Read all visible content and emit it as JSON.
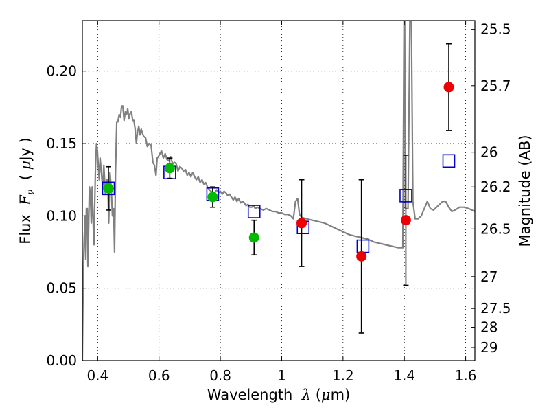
{
  "chart_data": {
    "type": "scatter",
    "title": "",
    "xlabel": "Wavelength  λ (μm)",
    "ylabel": "Flux  Fν ( μJy )",
    "y2label": "Magnitude (AB)",
    "xlim": [
      0.35,
      1.63
    ],
    "ylim": [
      0.0,
      0.235
    ],
    "grid": true,
    "x_ticks": [
      0.4,
      0.6,
      0.8,
      1.0,
      1.2,
      1.4,
      1.6
    ],
    "x_tick_labels": [
      "0.4",
      "0.6",
      "0.8",
      "1",
      "1.2",
      "1.4",
      "1.6"
    ],
    "y_ticks": [
      0.0,
      0.05,
      0.1,
      0.15,
      0.2
    ],
    "y_tick_labels": [
      "0.00",
      "0.05",
      "0.10",
      "0.15",
      "0.20"
    ],
    "y2_ticks": [
      {
        "label": "25.5",
        "flux": 0.229
      },
      {
        "label": "25.7",
        "flux": 0.19
      },
      {
        "label": "26",
        "flux": 0.144
      },
      {
        "label": "26.2",
        "flux": 0.12
      },
      {
        "label": "26.5",
        "flux": 0.091
      },
      {
        "label": "27",
        "flux": 0.058
      },
      {
        "label": "27.5",
        "flux": 0.036
      },
      {
        "label": "28",
        "flux": 0.023
      },
      {
        "label": "29",
        "flux": 0.009
      }
    ],
    "colors": {
      "model": "#808080",
      "optical": "#00bb00",
      "nir": "#ee0000",
      "synthetic": "#0000cc",
      "errorbar": "#000000"
    },
    "model_sed": [
      [
        0.35,
        0.0
      ],
      [
        0.353,
        0.06
      ],
      [
        0.356,
        0.085
      ],
      [
        0.359,
        0.1
      ],
      [
        0.361,
        0.07
      ],
      [
        0.363,
        0.105
      ],
      [
        0.366,
        0.105
      ],
      [
        0.368,
        0.065
      ],
      [
        0.37,
        0.085
      ],
      [
        0.373,
        0.12
      ],
      [
        0.376,
        0.115
      ],
      [
        0.379,
        0.095
      ],
      [
        0.382,
        0.12
      ],
      [
        0.386,
        0.09
      ],
      [
        0.388,
        0.08
      ],
      [
        0.39,
        0.105
      ],
      [
        0.393,
        0.135
      ],
      [
        0.396,
        0.15
      ],
      [
        0.399,
        0.145
      ],
      [
        0.402,
        0.135
      ],
      [
        0.405,
        0.125
      ],
      [
        0.408,
        0.14
      ],
      [
        0.412,
        0.13
      ],
      [
        0.416,
        0.12
      ],
      [
        0.42,
        0.135
      ],
      [
        0.425,
        0.115
      ],
      [
        0.429,
        0.125
      ],
      [
        0.433,
        0.125
      ],
      [
        0.436,
        0.095
      ],
      [
        0.44,
        0.13
      ],
      [
        0.444,
        0.12
      ],
      [
        0.448,
        0.1
      ],
      [
        0.452,
        0.105
      ],
      [
        0.455,
        0.075
      ],
      [
        0.458,
        0.13
      ],
      [
        0.462,
        0.165
      ],
      [
        0.466,
        0.165
      ],
      [
        0.47,
        0.17
      ],
      [
        0.474,
        0.168
      ],
      [
        0.478,
        0.176
      ],
      [
        0.482,
        0.176
      ],
      [
        0.486,
        0.166
      ],
      [
        0.49,
        0.172
      ],
      [
        0.494,
        0.17
      ],
      [
        0.498,
        0.174
      ],
      [
        0.502,
        0.167
      ],
      [
        0.506,
        0.171
      ],
      [
        0.51,
        0.172
      ],
      [
        0.514,
        0.166
      ],
      [
        0.518,
        0.166
      ],
      [
        0.522,
        0.16
      ],
      [
        0.526,
        0.15
      ],
      [
        0.53,
        0.158
      ],
      [
        0.534,
        0.162
      ],
      [
        0.538,
        0.156
      ],
      [
        0.542,
        0.16
      ],
      [
        0.546,
        0.157
      ],
      [
        0.55,
        0.155
      ],
      [
        0.556,
        0.154
      ],
      [
        0.562,
        0.148
      ],
      [
        0.568,
        0.15
      ],
      [
        0.574,
        0.149
      ],
      [
        0.58,
        0.137
      ],
      [
        0.585,
        0.135
      ],
      [
        0.59,
        0.128
      ],
      [
        0.594,
        0.14
      ],
      [
        0.598,
        0.141
      ],
      [
        0.603,
        0.143
      ],
      [
        0.608,
        0.145
      ],
      [
        0.614,
        0.14
      ],
      [
        0.62,
        0.143
      ],
      [
        0.626,
        0.139
      ],
      [
        0.632,
        0.138
      ],
      [
        0.638,
        0.141
      ],
      [
        0.644,
        0.136
      ],
      [
        0.65,
        0.137
      ],
      [
        0.656,
        0.136
      ],
      [
        0.662,
        0.131
      ],
      [
        0.668,
        0.134
      ],
      [
        0.674,
        0.133
      ],
      [
        0.68,
        0.131
      ],
      [
        0.686,
        0.132
      ],
      [
        0.692,
        0.128
      ],
      [
        0.698,
        0.13
      ],
      [
        0.704,
        0.127
      ],
      [
        0.71,
        0.13
      ],
      [
        0.716,
        0.127
      ],
      [
        0.722,
        0.125
      ],
      [
        0.728,
        0.127
      ],
      [
        0.734,
        0.123
      ],
      [
        0.74,
        0.125
      ],
      [
        0.746,
        0.122
      ],
      [
        0.752,
        0.123
      ],
      [
        0.758,
        0.12
      ],
      [
        0.764,
        0.118
      ],
      [
        0.77,
        0.117
      ],
      [
        0.776,
        0.113
      ],
      [
        0.782,
        0.116
      ],
      [
        0.788,
        0.118
      ],
      [
        0.794,
        0.116
      ],
      [
        0.8,
        0.117
      ],
      [
        0.806,
        0.115
      ],
      [
        0.812,
        0.117
      ],
      [
        0.818,
        0.116
      ],
      [
        0.824,
        0.114
      ],
      [
        0.83,
        0.115
      ],
      [
        0.836,
        0.113
      ],
      [
        0.842,
        0.111
      ],
      [
        0.848,
        0.113
      ],
      [
        0.854,
        0.11
      ],
      [
        0.86,
        0.112
      ],
      [
        0.866,
        0.109
      ],
      [
        0.872,
        0.11
      ],
      [
        0.878,
        0.109
      ],
      [
        0.884,
        0.107
      ],
      [
        0.89,
        0.108
      ],
      [
        0.896,
        0.106
      ],
      [
        0.902,
        0.106
      ],
      [
        0.908,
        0.107
      ],
      [
        0.914,
        0.105
      ],
      [
        0.92,
        0.106
      ],
      [
        0.93,
        0.105
      ],
      [
        0.94,
        0.104
      ],
      [
        0.95,
        0.105
      ],
      [
        0.96,
        0.104
      ],
      [
        0.97,
        0.103
      ],
      [
        0.98,
        0.103
      ],
      [
        0.99,
        0.102
      ],
      [
        1.0,
        0.102
      ],
      [
        1.01,
        0.101
      ],
      [
        1.02,
        0.101
      ],
      [
        1.03,
        0.1
      ],
      [
        1.038,
        0.098
      ],
      [
        1.045,
        0.11
      ],
      [
        1.052,
        0.112
      ],
      [
        1.058,
        0.101
      ],
      [
        1.065,
        0.099
      ],
      [
        1.08,
        0.098
      ],
      [
        1.1,
        0.097
      ],
      [
        1.12,
        0.096
      ],
      [
        1.14,
        0.095
      ],
      [
        1.16,
        0.093
      ],
      [
        1.18,
        0.091
      ],
      [
        1.2,
        0.089
      ],
      [
        1.22,
        0.087
      ],
      [
        1.24,
        0.086
      ],
      [
        1.26,
        0.085
      ],
      [
        1.28,
        0.084
      ],
      [
        1.3,
        0.082
      ],
      [
        1.32,
        0.081
      ],
      [
        1.34,
        0.08
      ],
      [
        1.36,
        0.079
      ],
      [
        1.38,
        0.078
      ],
      [
        1.395,
        0.078
      ],
      [
        1.397,
        0.16
      ],
      [
        1.399,
        0.235
      ],
      [
        1.401,
        0.235
      ],
      [
        1.403,
        0.105
      ],
      [
        1.412,
        0.105
      ],
      [
        1.418,
        0.235
      ],
      [
        1.423,
        0.235
      ],
      [
        1.428,
        0.11
      ],
      [
        1.435,
        0.098
      ],
      [
        1.445,
        0.098
      ],
      [
        1.455,
        0.1
      ],
      [
        1.465,
        0.105
      ],
      [
        1.475,
        0.11
      ],
      [
        1.485,
        0.105
      ],
      [
        1.495,
        0.104
      ],
      [
        1.505,
        0.106
      ],
      [
        1.515,
        0.108
      ],
      [
        1.525,
        0.11
      ],
      [
        1.535,
        0.11
      ],
      [
        1.545,
        0.106
      ],
      [
        1.555,
        0.103
      ],
      [
        1.565,
        0.104
      ],
      [
        1.58,
        0.106
      ],
      [
        1.595,
        0.106
      ],
      [
        1.61,
        0.105
      ],
      [
        1.63,
        0.103
      ]
    ],
    "series": [
      {
        "kind": "optical",
        "points": [
          {
            "x": 0.435,
            "y": 0.119,
            "yerr": 0.015
          },
          {
            "x": 0.635,
            "y": 0.133,
            "yerr": 0.007
          },
          {
            "x": 0.775,
            "y": 0.113,
            "yerr": 0.007
          },
          {
            "x": 0.91,
            "y": 0.085,
            "yerr": 0.012
          }
        ]
      },
      {
        "kind": "nir",
        "points": [
          {
            "x": 1.065,
            "y": 0.095,
            "yerr": 0.03
          },
          {
            "x": 1.26,
            "y": 0.072,
            "yerr": 0.053
          },
          {
            "x": 1.405,
            "y": 0.097,
            "yerr": 0.045
          },
          {
            "x": 1.545,
            "y": 0.189,
            "yerr": 0.03
          }
        ]
      },
      {
        "kind": "synthetic",
        "points": [
          {
            "x": 0.435,
            "y": 0.119
          },
          {
            "x": 0.635,
            "y": 0.13
          },
          {
            "x": 0.775,
            "y": 0.115
          },
          {
            "x": 0.91,
            "y": 0.103
          },
          {
            "x": 1.07,
            "y": 0.092
          },
          {
            "x": 1.265,
            "y": 0.079
          },
          {
            "x": 1.405,
            "y": 0.114
          },
          {
            "x": 1.545,
            "y": 0.138
          }
        ]
      }
    ]
  }
}
